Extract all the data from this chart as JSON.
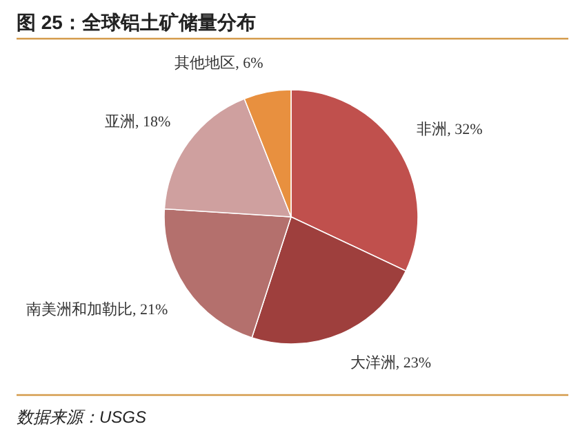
{
  "chart_data": {
    "type": "pie",
    "title": "图 25：全球铝土矿储量分布",
    "categories": [
      "非洲",
      "大洋洲",
      "南美洲和加勒比",
      "亚洲",
      "其他地区"
    ],
    "values": [
      32,
      23,
      21,
      18,
      6
    ],
    "value_labels": [
      "32%",
      "23%",
      "21%",
      "18%",
      "6%"
    ],
    "colors": [
      "#c0504d",
      "#9e3f3d",
      "#b4706d",
      "#cfa09f",
      "#e8903f"
    ],
    "annotations": [
      "数据来源：USGS"
    ]
  }
}
